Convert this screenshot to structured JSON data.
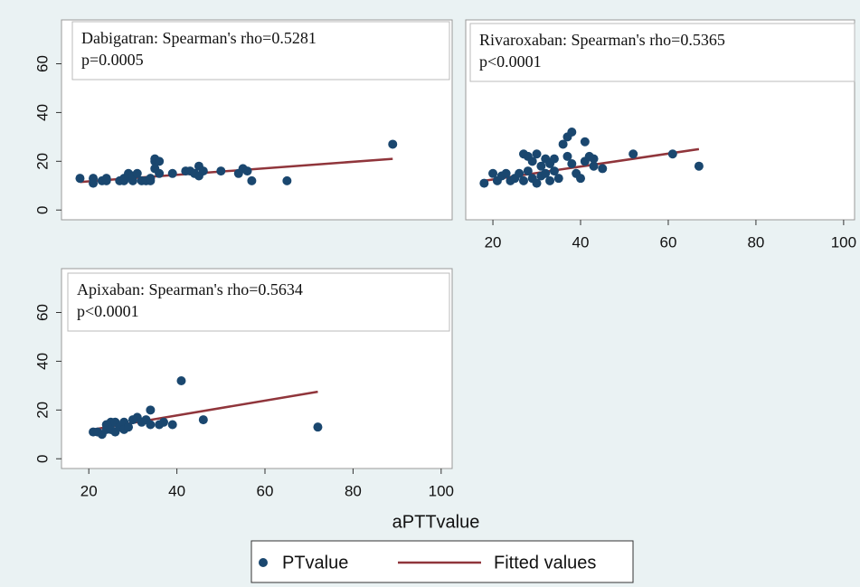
{
  "x_label": "aPTTvalue",
  "chart_data": [
    {
      "type": "scatter",
      "title": "Dabigatran: Spearman's rho=0.5281",
      "subtitle": "p=0.0005",
      "xlim": [
        13.8,
        102.5
      ],
      "ylim": [
        -4,
        78
      ],
      "yticks": [
        0,
        20,
        40,
        60
      ],
      "series": [
        {
          "name": "PTvalue",
          "color": "#1a476f",
          "x": [
            18,
            21,
            21,
            23,
            24,
            24,
            27,
            28,
            28,
            29,
            29,
            30,
            30,
            31,
            32,
            33,
            34,
            34,
            35,
            35,
            35,
            36,
            36,
            39,
            42,
            43,
            44,
            45,
            45,
            46,
            50,
            54,
            55,
            56,
            57,
            65,
            89
          ],
          "values": [
            13,
            11,
            13,
            12,
            12,
            13,
            12,
            12,
            13,
            14,
            15,
            12,
            14,
            15,
            12,
            12,
            12,
            13,
            20,
            21,
            17,
            20,
            15,
            15,
            16,
            16,
            15,
            18,
            14,
            16,
            16,
            15,
            17,
            16,
            12,
            12,
            27
          ]
        },
        {
          "name": "Fitted values",
          "color": "#90353b",
          "x": [
            18,
            89
          ],
          "values": [
            11.5,
            21
          ]
        }
      ]
    },
    {
      "type": "scatter",
      "title": "Rivaroxaban: Spearman's rho=0.5365",
      "subtitle": "p<0.0001",
      "xlim": [
        13.8,
        102.5
      ],
      "ylim": [
        -4,
        78
      ],
      "xticks": [
        20,
        40,
        60,
        80,
        100
      ],
      "series": [
        {
          "color": "#1a476f",
          "x": [
            18,
            20,
            21,
            22,
            23,
            24,
            25,
            26,
            27,
            27,
            28,
            28,
            29,
            29,
            30,
            30,
            31,
            31,
            32,
            32,
            33,
            33,
            34,
            34,
            35,
            36,
            37,
            37,
            38,
            38,
            39,
            40,
            41,
            41,
            42,
            43,
            43,
            45,
            52,
            61,
            67
          ],
          "values": [
            11,
            15,
            12,
            14,
            15,
            12,
            13,
            15,
            23,
            12,
            16,
            22,
            20,
            13,
            23,
            11,
            18,
            14,
            21,
            15,
            19,
            12,
            21,
            16,
            13,
            27,
            30,
            22,
            32,
            19,
            15,
            13,
            28,
            20,
            22,
            18,
            21,
            17,
            23,
            23,
            18
          ]
        },
        {
          "color": "#90353b",
          "x": [
            18,
            67
          ],
          "values": [
            12,
            25
          ]
        }
      ]
    },
    {
      "type": "scatter",
      "title": "Apixaban: Spearman's rho=0.5634",
      "subtitle": "p<0.0001",
      "xlim": [
        13.8,
        102.5
      ],
      "ylim": [
        -4,
        78
      ],
      "xticks": [
        20,
        40,
        60,
        80,
        100
      ],
      "yticks": [
        0,
        20,
        40,
        60
      ],
      "series": [
        {
          "color": "#1a476f",
          "x": [
            21,
            22,
            23,
            24,
            24,
            25,
            25,
            26,
            26,
            27,
            28,
            28,
            29,
            30,
            31,
            32,
            33,
            34,
            34,
            36,
            37,
            39,
            41,
            46,
            72
          ],
          "values": [
            11,
            11,
            10,
            12,
            14,
            15,
            12,
            11,
            15,
            13,
            15,
            12,
            13,
            16,
            17,
            15,
            16,
            20,
            14,
            14,
            15,
            14,
            32,
            16,
            13
          ]
        },
        {
          "color": "#90353b",
          "x": [
            21,
            72
          ],
          "values": [
            12,
            27.5
          ]
        }
      ]
    }
  ]
}
